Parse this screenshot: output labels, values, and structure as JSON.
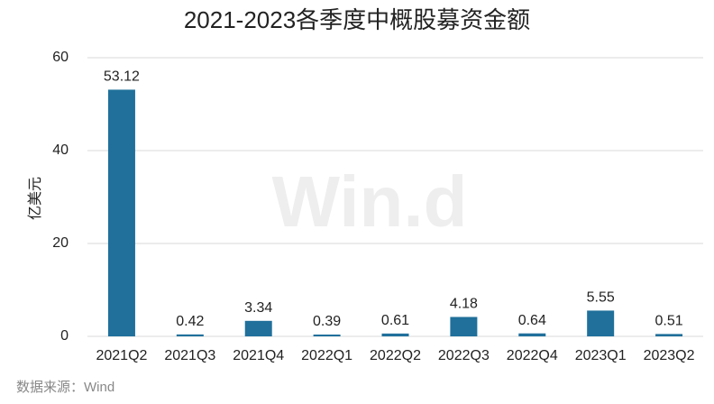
{
  "chart_data": {
    "type": "bar",
    "title": "2021-2023各季度中概股募资金额",
    "y_label": "亿美元",
    "source": "数据来源：Wind",
    "watermark": "Win.d",
    "categories": [
      "2021Q2",
      "2021Q3",
      "2021Q4",
      "2022Q1",
      "2022Q2",
      "2022Q3",
      "2022Q4",
      "2023Q1",
      "2023Q2"
    ],
    "values": [
      53.12,
      0.42,
      3.34,
      0.39,
      0.61,
      4.18,
      0.64,
      5.55,
      0.51
    ],
    "color": "#20709b",
    "ylim": [
      0,
      60
    ],
    "yticks": [
      0,
      20,
      40,
      60
    ],
    "grid": true
  }
}
